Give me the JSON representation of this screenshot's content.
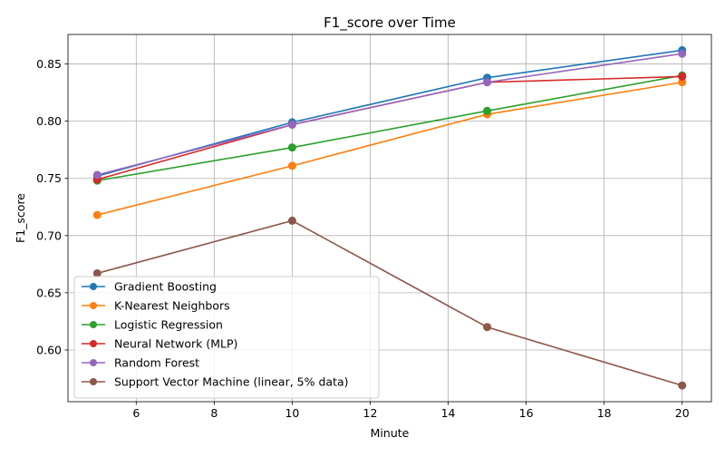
{
  "chart_data": {
    "type": "line",
    "title": "F1_score over Time",
    "xlabel": "Minute",
    "ylabel": "F1_score",
    "x": [
      5,
      10,
      15,
      20
    ],
    "xlim": [
      4.25,
      20.75
    ],
    "ylim": [
      0.5548,
      0.8758
    ],
    "xticks": [
      6,
      8,
      10,
      12,
      14,
      16,
      18,
      20
    ],
    "yticks": [
      0.6,
      0.65,
      0.7,
      0.75,
      0.8,
      0.85
    ],
    "xtick_labels": [
      "6",
      "8",
      "10",
      "12",
      "14",
      "16",
      "18",
      "20"
    ],
    "ytick_labels": [
      "0.60",
      "0.65",
      "0.70",
      "0.75",
      "0.80",
      "0.85"
    ],
    "grid": true,
    "legend_position": "lower-left",
    "marker": "circle",
    "series": [
      {
        "name": "Gradient Boosting",
        "color": "#1f77b4",
        "values": [
          0.752,
          0.799,
          0.838,
          0.862
        ]
      },
      {
        "name": "K-Nearest Neighbors",
        "color": "#ff7f0e",
        "values": [
          0.718,
          0.761,
          0.806,
          0.834
        ]
      },
      {
        "name": "Logistic Regression",
        "color": "#2ca02c",
        "values": [
          0.748,
          0.777,
          0.809,
          0.84
        ]
      },
      {
        "name": "Neural Network (MLP)",
        "color": "#d62728",
        "values": [
          0.749,
          0.797,
          0.834,
          0.839
        ]
      },
      {
        "name": "Random Forest",
        "color": "#9467bd",
        "values": [
          0.753,
          0.797,
          0.834,
          0.859
        ]
      },
      {
        "name": "Support Vector Machine (linear, 5% data)",
        "color": "#8c564b",
        "values": [
          0.667,
          0.713,
          0.62,
          0.569
        ]
      }
    ]
  }
}
